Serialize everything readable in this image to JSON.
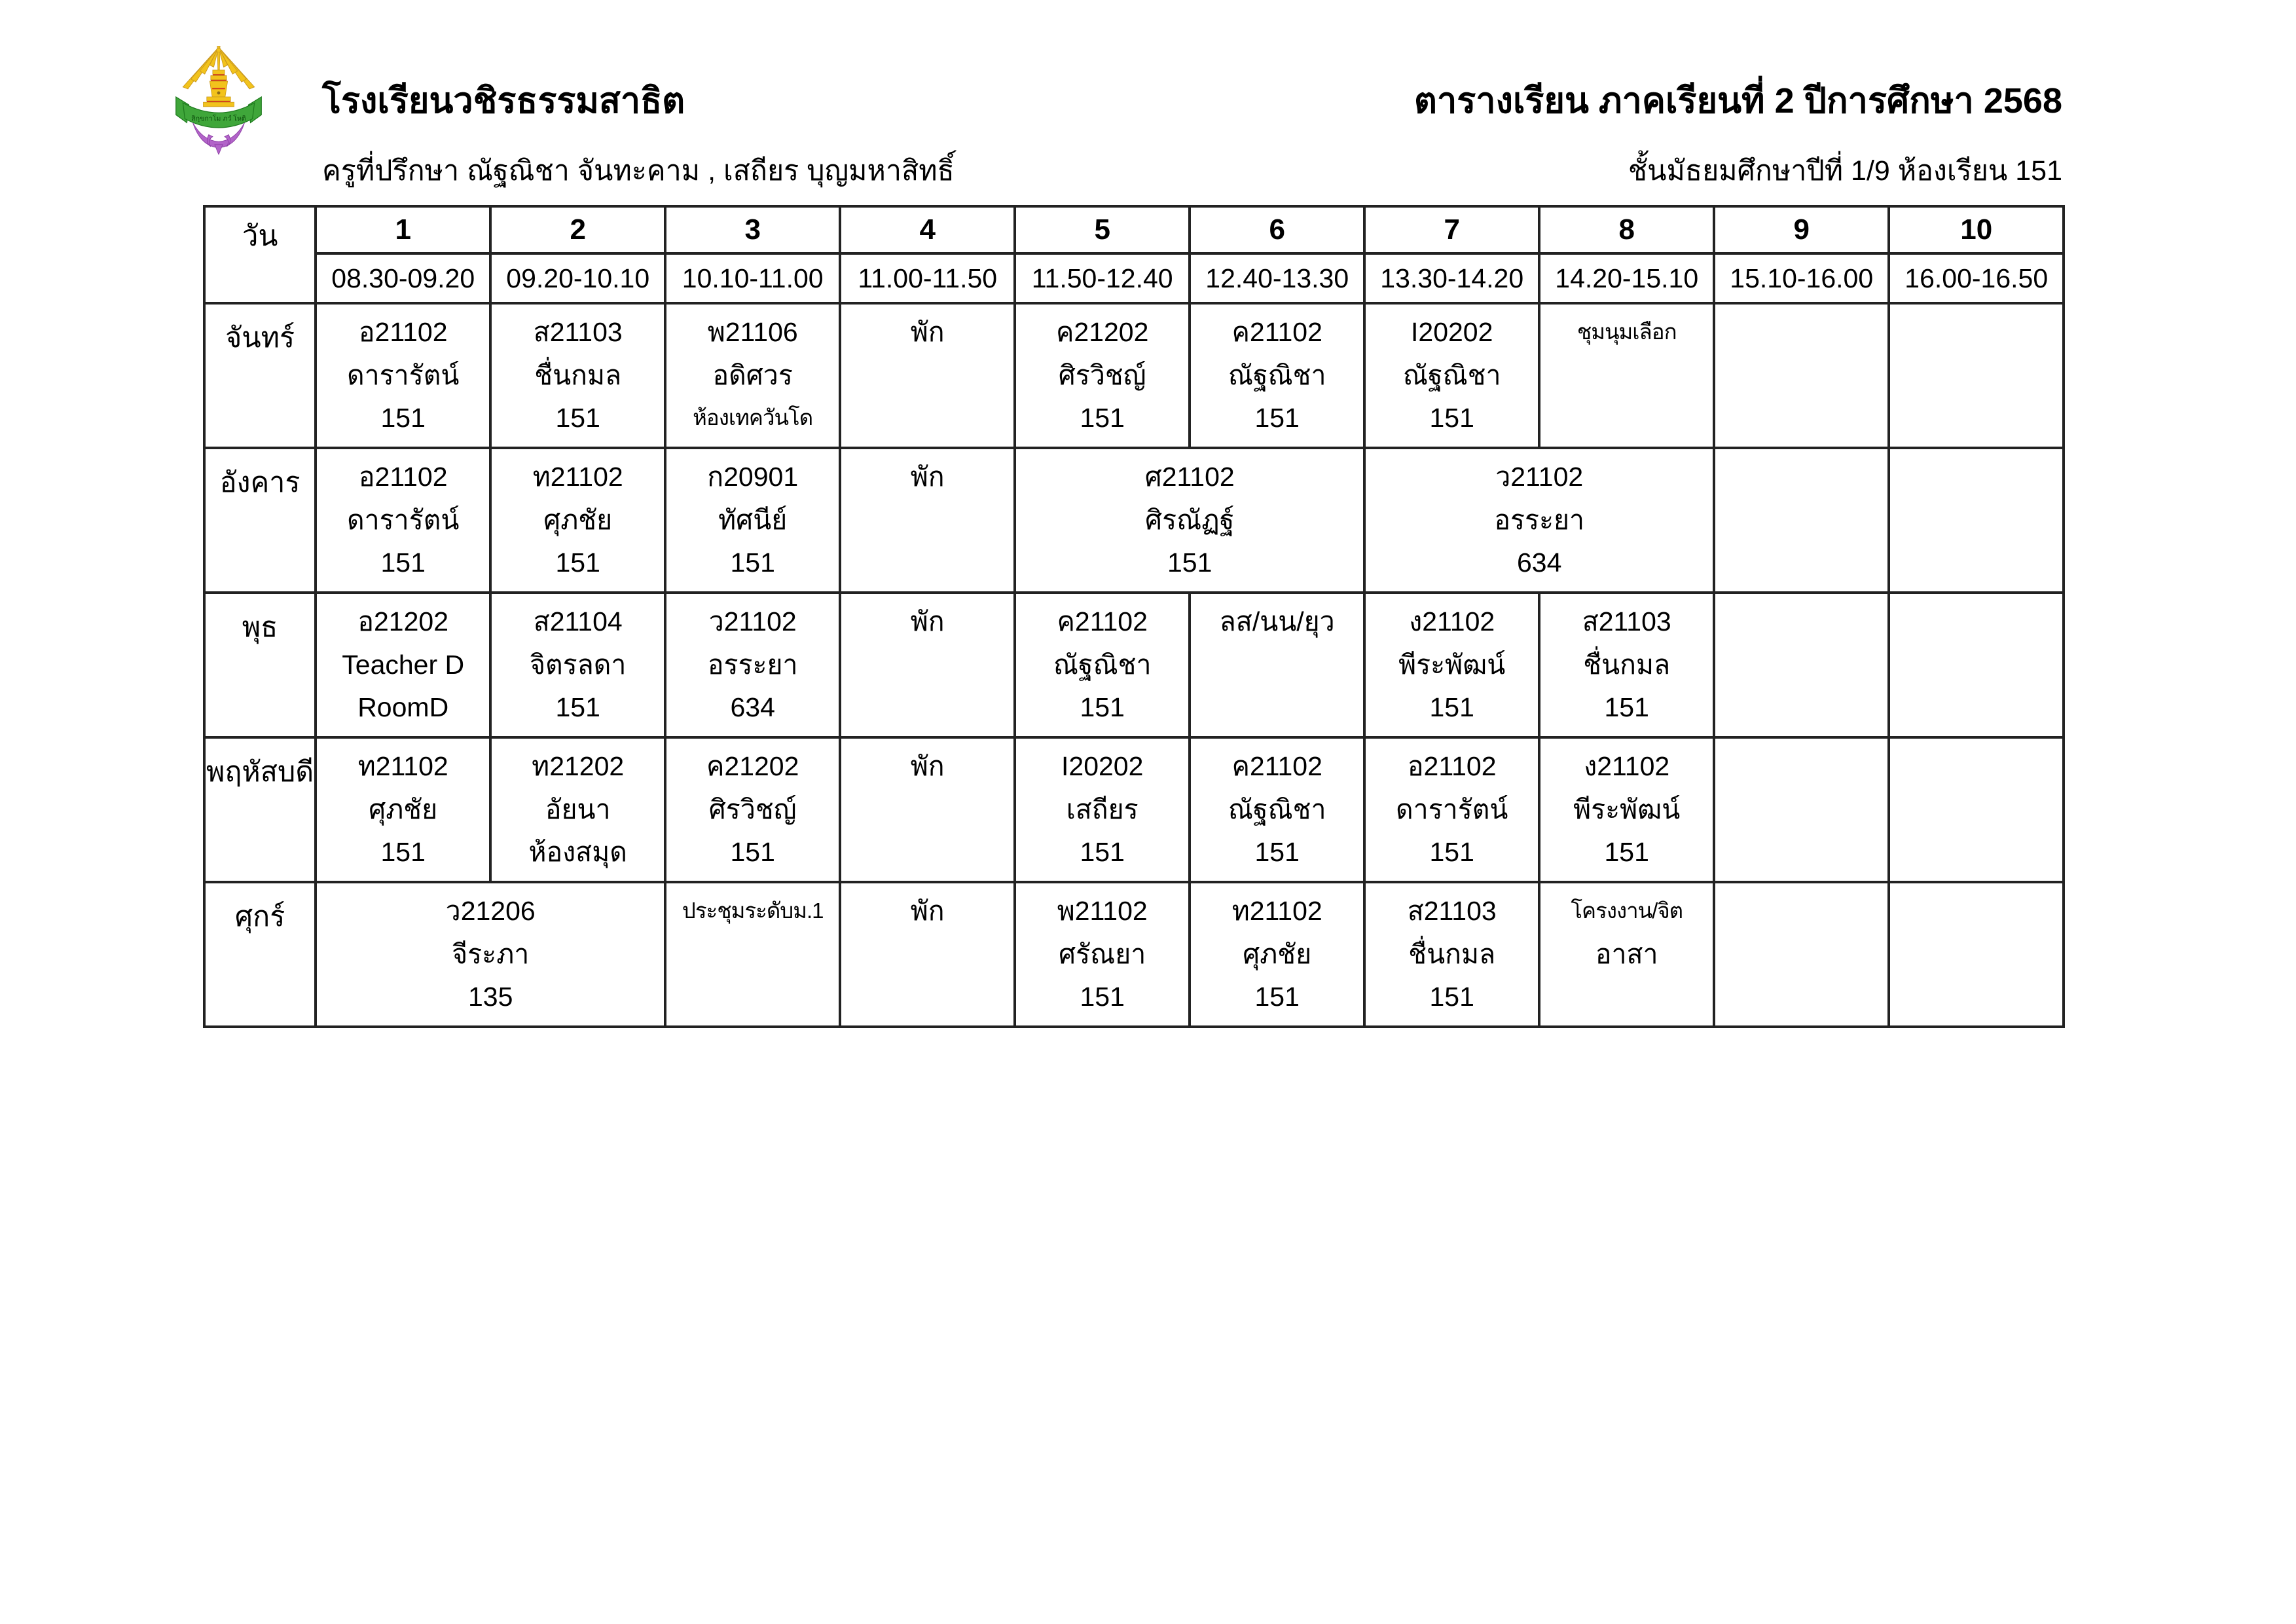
{
  "header": {
    "school_name": "โรงเรียนวชิรธรรมสาธิต",
    "advisor_line": "ครูที่ปรึกษา  ณัฐณิชา  จันทะคาม ,  เสถียร  บุญมหาสิทธิ์",
    "schedule_title": "ตารางเรียน ภาคเรียนที่ 2  ปีการศึกษา  2568",
    "class_line": "ชั้นมัธยมศึกษาปีที่ 1/9   ห้องเรียน  151",
    "logo": {
      "banner_text": "สิกฺขกาโม ภวํ โหติ",
      "colors": {
        "gold": "#f2c31c",
        "gold_dark": "#c9981f",
        "red": "#d4391c",
        "green": "#3fa63a",
        "green_dark": "#1e7a1e",
        "purple": "#b264c9"
      }
    }
  },
  "table": {
    "day_header": "วัน",
    "periods": [
      {
        "number": "1",
        "time": "08.30-09.20"
      },
      {
        "number": "2",
        "time": "09.20-10.10"
      },
      {
        "number": "3",
        "time": "10.10-11.00"
      },
      {
        "number": "4",
        "time": "11.00-11.50"
      },
      {
        "number": "5",
        "time": "11.50-12.40"
      },
      {
        "number": "6",
        "time": "12.40-13.30"
      },
      {
        "number": "7",
        "time": "13.30-14.20"
      },
      {
        "number": "8",
        "time": "14.20-15.10"
      },
      {
        "number": "9",
        "time": "15.10-16.00"
      },
      {
        "number": "10",
        "time": "16.00-16.50"
      }
    ],
    "days": [
      {
        "name": "จันทร์",
        "cells": [
          {
            "span": 1,
            "lines": [
              "อ21102",
              "ดารารัตน์",
              "151"
            ]
          },
          {
            "span": 1,
            "lines": [
              "ส21103",
              "ชื่นกมล",
              "151"
            ]
          },
          {
            "span": 1,
            "lines": [
              "พ21106",
              "อดิศวร",
              "ห้องเทควันโด"
            ]
          },
          {
            "span": 1,
            "lines": [
              "พัก",
              "",
              ""
            ]
          },
          {
            "span": 1,
            "lines": [
              "ค21202",
              "ศิรวิชญ์",
              "151"
            ]
          },
          {
            "span": 1,
            "lines": [
              "ค21102",
              "ณัฐณิชา",
              "151"
            ]
          },
          {
            "span": 1,
            "lines": [
              "I20202",
              "ณัฐณิชา",
              "151"
            ]
          },
          {
            "span": 1,
            "lines": [
              "ชุมนุมเลือก",
              "",
              ""
            ]
          },
          {
            "span": 1,
            "lines": [
              "",
              "",
              ""
            ]
          },
          {
            "span": 1,
            "lines": [
              "",
              "",
              ""
            ]
          }
        ]
      },
      {
        "name": "อังคาร",
        "cells": [
          {
            "span": 1,
            "lines": [
              "อ21102",
              "ดารารัตน์",
              "151"
            ]
          },
          {
            "span": 1,
            "lines": [
              "ท21102",
              "ศุภชัย",
              "151"
            ]
          },
          {
            "span": 1,
            "lines": [
              "ก20901",
              "ทัศนีย์",
              "151"
            ]
          },
          {
            "span": 1,
            "lines": [
              "พัก",
              "",
              ""
            ]
          },
          {
            "span": 2,
            "lines": [
              "ศ21102",
              "ศิรณัฏฐ์",
              "151"
            ]
          },
          {
            "span": 2,
            "lines": [
              "ว21102",
              "อรระยา",
              "634"
            ]
          },
          {
            "span": 1,
            "lines": [
              "",
              "",
              ""
            ]
          },
          {
            "span": 1,
            "lines": [
              "",
              "",
              ""
            ]
          }
        ]
      },
      {
        "name": "พุธ",
        "cells": [
          {
            "span": 1,
            "lines": [
              "อ21202",
              "Teacher D",
              "RoomD"
            ]
          },
          {
            "span": 1,
            "lines": [
              "ส21104",
              "จิตรลดา",
              "151"
            ]
          },
          {
            "span": 1,
            "lines": [
              "ว21102",
              "อรระยา",
              "634"
            ]
          },
          {
            "span": 1,
            "lines": [
              "พัก",
              "",
              ""
            ]
          },
          {
            "span": 1,
            "lines": [
              "ค21102",
              "ณัฐณิชา",
              "151"
            ]
          },
          {
            "span": 1,
            "lines": [
              "ลส/นน/ยุว",
              "",
              ""
            ]
          },
          {
            "span": 1,
            "lines": [
              "ง21102",
              "พีระพัฒน์",
              "151"
            ]
          },
          {
            "span": 1,
            "lines": [
              "ส21103",
              "ชื่นกมล",
              "151"
            ]
          },
          {
            "span": 1,
            "lines": [
              "",
              "",
              ""
            ]
          },
          {
            "span": 1,
            "lines": [
              "",
              "",
              ""
            ]
          }
        ]
      },
      {
        "name": "พฤหัสบดี",
        "cells": [
          {
            "span": 1,
            "lines": [
              "ท21102",
              "ศุภชัย",
              "151"
            ]
          },
          {
            "span": 1,
            "lines": [
              "ท21202",
              "อัยนา",
              "ห้องสมุด"
            ]
          },
          {
            "span": 1,
            "lines": [
              "ค21202",
              "ศิรวิชญ์",
              "151"
            ]
          },
          {
            "span": 1,
            "lines": [
              "พัก",
              "",
              ""
            ]
          },
          {
            "span": 1,
            "lines": [
              "I20202",
              "เสถียร",
              "151"
            ]
          },
          {
            "span": 1,
            "lines": [
              "ค21102",
              "ณัฐณิชา",
              "151"
            ]
          },
          {
            "span": 1,
            "lines": [
              "อ21102",
              "ดารารัตน์",
              "151"
            ]
          },
          {
            "span": 1,
            "lines": [
              "ง21102",
              "พีระพัฒน์",
              "151"
            ]
          },
          {
            "span": 1,
            "lines": [
              "",
              "",
              ""
            ]
          },
          {
            "span": 1,
            "lines": [
              "",
              "",
              ""
            ]
          }
        ]
      },
      {
        "name": "ศุกร์",
        "cells": [
          {
            "span": 2,
            "lines": [
              "ว21206",
              "จีระภา",
              "135"
            ]
          },
          {
            "span": 1,
            "lines": [
              "ประชุมระดับม.1",
              "",
              ""
            ]
          },
          {
            "span": 1,
            "lines": [
              "พัก",
              "",
              ""
            ]
          },
          {
            "span": 1,
            "lines": [
              "พ21102",
              "ศรัณยา",
              "151"
            ]
          },
          {
            "span": 1,
            "lines": [
              "ท21102",
              "ศุภชัย",
              "151"
            ]
          },
          {
            "span": 1,
            "lines": [
              "ส21103",
              "ชื่นกมล",
              "151"
            ]
          },
          {
            "span": 1,
            "lines": [
              "โครงงาน/จิต",
              "อาสา",
              ""
            ]
          },
          {
            "span": 1,
            "lines": [
              "",
              "",
              ""
            ]
          },
          {
            "span": 1,
            "lines": [
              "",
              "",
              ""
            ]
          }
        ]
      }
    ]
  }
}
